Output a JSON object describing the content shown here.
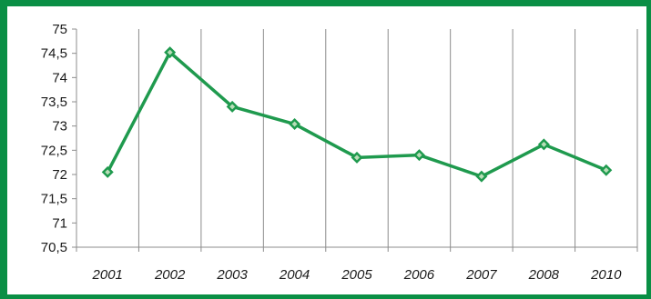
{
  "chart_data": {
    "type": "line",
    "categories": [
      "2001",
      "2002",
      "2003",
      "2004",
      "2005",
      "2006",
      "2007",
      "2008",
      "2010"
    ],
    "values": [
      72.05,
      74.52,
      73.4,
      73.04,
      72.35,
      72.4,
      71.96,
      72.62,
      72.09
    ],
    "yticks": [
      "75",
      "74,5",
      "74",
      "73,5",
      "73",
      "72,5",
      "72",
      "71,5",
      "71",
      "70,5"
    ],
    "ylim": [
      70.5,
      75
    ],
    "grid": "vertical",
    "line_color": "#1f9a4e",
    "marker_fill": "#1f9a4e",
    "marker_center": "#b9ddb8",
    "frame_color": "#0a8f45"
  }
}
